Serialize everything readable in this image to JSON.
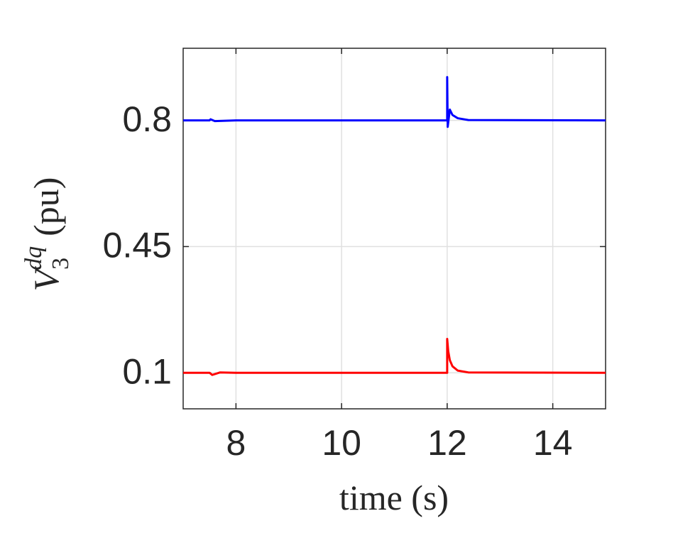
{
  "chart_data": {
    "type": "line",
    "xlabel": "time (s)",
    "ylabel": {
      "base": "V",
      "sub": "3",
      "sup": "dq",
      "unit": "(pu)"
    },
    "xlim": [
      7,
      15
    ],
    "xticks": [
      8,
      10,
      12,
      14
    ],
    "ylim": [
      0,
      1
    ],
    "yticks": [
      0.1,
      0.45,
      0.8
    ],
    "grid": true,
    "series": [
      {
        "color": "#0000ff",
        "x": [
          7,
          7.5,
          7.52,
          7.6,
          8,
          12,
          12.0,
          12.01,
          12.05,
          12.1,
          12.2,
          12.4,
          15
        ],
        "values": [
          0.8,
          0.8,
          0.803,
          0.798,
          0.8,
          0.8,
          0.92,
          0.782,
          0.83,
          0.815,
          0.806,
          0.801,
          0.8
        ]
      },
      {
        "color": "#ff0000",
        "x": [
          7,
          7.5,
          7.55,
          7.7,
          8,
          12,
          12.0,
          12.02,
          12.05,
          12.1,
          12.2,
          12.4,
          15
        ],
        "values": [
          0.1,
          0.1,
          0.094,
          0.101,
          0.1,
          0.1,
          0.194,
          0.16,
          0.135,
          0.118,
          0.106,
          0.101,
          0.1
        ]
      }
    ]
  }
}
